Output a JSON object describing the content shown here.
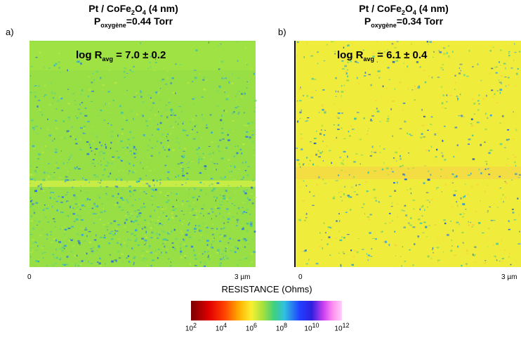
{
  "panels": [
    {
      "letter": "a)",
      "title": [
        "Pt / CoFe",
        "2",
        "O",
        "4",
        " (4 nm)"
      ],
      "pressure": [
        "P",
        "oxygène",
        "=0.44 Torr"
      ],
      "log_r": [
        "log R",
        "avg",
        " = 7.0 ± 0.2"
      ],
      "axis_start": "0",
      "axis_end": "3 µm"
    },
    {
      "letter": "b)",
      "title": [
        "Pt / CoFe",
        "2",
        "O",
        "4",
        " (4 nm)"
      ],
      "pressure": [
        "P",
        "oxygène",
        "=0.34 Torr"
      ],
      "log_r": [
        "log R",
        "avg",
        " = 6.1 ± 0.4"
      ],
      "axis_start": "0",
      "axis_end": "3 µm"
    }
  ],
  "colorbar": {
    "label": "RESISTANCE (Ohms)",
    "ticks": [
      {
        "base": "10",
        "exponent": "2"
      },
      {
        "base": "10",
        "exponent": "4"
      },
      {
        "base": "10",
        "exponent": "6"
      },
      {
        "base": "10",
        "exponent": "8"
      },
      {
        "base": "10",
        "exponent": "10"
      },
      {
        "base": "10",
        "exponent": "12"
      }
    ]
  }
}
